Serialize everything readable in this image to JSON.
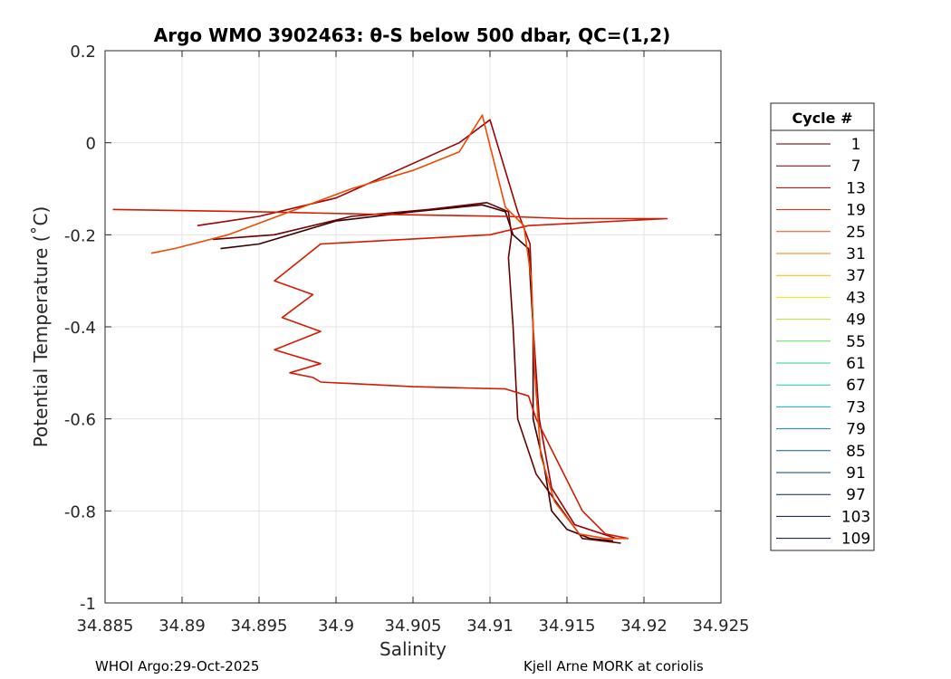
{
  "chart_data": {
    "type": "line",
    "title": "Argo WMO 3902463: θ-S below 500 dbar,  QC=(1,2)",
    "xlabel": "Salinity",
    "ylabel": "Potential Temperature (˚C)",
    "xlim": [
      34.885,
      34.925
    ],
    "ylim": [
      -1,
      0.2
    ],
    "xticks": [
      "34.885",
      "34.89",
      "34.895",
      "34.9",
      "34.905",
      "34.91",
      "34.915",
      "34.92",
      "34.925"
    ],
    "yticks": [
      "0.2",
      "0",
      "-0.2",
      "-0.4",
      "-0.6",
      "-0.8",
      "-1"
    ],
    "grid": true,
    "legend": {
      "title": "Cycle #",
      "placement": "right",
      "entries": [
        {
          "label": "1",
          "color": "#3a0000"
        },
        {
          "label": "7",
          "color": "#6b0000"
        },
        {
          "label": "13",
          "color": "#a00000"
        },
        {
          "label": "19",
          "color": "#d41a00"
        },
        {
          "label": "25",
          "color": "#ee4a00"
        },
        {
          "label": "31",
          "color": "#f57d00"
        },
        {
          "label": "37",
          "color": "#f5b400"
        },
        {
          "label": "43",
          "color": "#f0e800"
        },
        {
          "label": "49",
          "color": "#a8e63a"
        },
        {
          "label": "55",
          "color": "#5ee05e"
        },
        {
          "label": "61",
          "color": "#2ed38a"
        },
        {
          "label": "67",
          "color": "#1cc4b4"
        },
        {
          "label": "73",
          "color": "#10aac8"
        },
        {
          "label": "79",
          "color": "#0a86b4"
        },
        {
          "label": "85",
          "color": "#07609a"
        },
        {
          "label": "91",
          "color": "#053f7a"
        },
        {
          "label": "97",
          "color": "#03245e"
        },
        {
          "label": "103",
          "color": "#02124a"
        },
        {
          "label": "109",
          "color": "#000840"
        }
      ]
    },
    "series": [
      {
        "color": "#3a0000",
        "x": [
          34.8925,
          34.895,
          34.9,
          34.905,
          34.9095,
          34.911,
          34.9115,
          34.9125,
          34.9128,
          34.9128,
          34.9135,
          34.914,
          34.915,
          34.9165,
          34.918
        ],
        "y": [
          -0.23,
          -0.22,
          -0.17,
          -0.15,
          -0.135,
          -0.15,
          -0.2,
          -0.23,
          -0.4,
          -0.6,
          -0.7,
          -0.8,
          -0.84,
          -0.86,
          -0.865
        ]
      },
      {
        "color": "#6b0000",
        "x": [
          34.892,
          34.896,
          34.901,
          34.906,
          34.9098,
          34.9112,
          34.9114,
          34.9112,
          34.9115,
          34.9118,
          34.913,
          34.916,
          34.9185
        ],
        "y": [
          -0.21,
          -0.2,
          -0.16,
          -0.145,
          -0.13,
          -0.15,
          -0.2,
          -0.25,
          -0.4,
          -0.6,
          -0.72,
          -0.86,
          -0.87
        ]
      },
      {
        "color": "#a00000",
        "x": [
          34.891,
          34.895,
          34.9,
          34.904,
          34.908,
          34.91,
          34.9118,
          34.9126,
          34.9128,
          34.9132,
          34.914,
          34.9155,
          34.9182
        ],
        "y": [
          -0.18,
          -0.16,
          -0.12,
          -0.06,
          0.0,
          0.05,
          -0.15,
          -0.22,
          -0.4,
          -0.6,
          -0.75,
          -0.83,
          -0.86
        ]
      },
      {
        "color": "#d41a00",
        "x": [
          34.8855,
          34.895,
          34.902,
          34.911,
          34.915,
          34.9215,
          34.9125,
          34.91,
          34.899,
          34.896,
          34.8985,
          34.8965,
          34.899,
          34.896,
          34.899,
          34.897,
          34.8985,
          34.899,
          34.905,
          34.911,
          34.9125,
          34.913,
          34.9145,
          34.916,
          34.9175,
          34.919
        ],
        "y": [
          -0.145,
          -0.15,
          -0.155,
          -0.16,
          -0.165,
          -0.165,
          -0.18,
          -0.2,
          -0.22,
          -0.3,
          -0.33,
          -0.38,
          -0.41,
          -0.45,
          -0.48,
          -0.5,
          -0.51,
          -0.52,
          -0.53,
          -0.535,
          -0.55,
          -0.6,
          -0.7,
          -0.8,
          -0.85,
          -0.86
        ]
      },
      {
        "color": "#ee4a00",
        "x": [
          34.888,
          34.8895,
          34.893,
          34.897,
          34.901,
          34.905,
          34.908,
          34.9095,
          34.911,
          34.9122,
          34.9127,
          34.9129,
          34.9133,
          34.9142,
          34.9158,
          34.9175,
          34.919
        ],
        "y": [
          -0.24,
          -0.23,
          -0.2,
          -0.15,
          -0.1,
          -0.06,
          -0.02,
          0.06,
          -0.14,
          -0.18,
          -0.3,
          -0.5,
          -0.68,
          -0.78,
          -0.85,
          -0.86,
          -0.86
        ]
      }
    ]
  },
  "footer": {
    "left": "WHOI Argo:29-Oct-2025",
    "right": "Kjell Arne MORK at coriolis"
  }
}
